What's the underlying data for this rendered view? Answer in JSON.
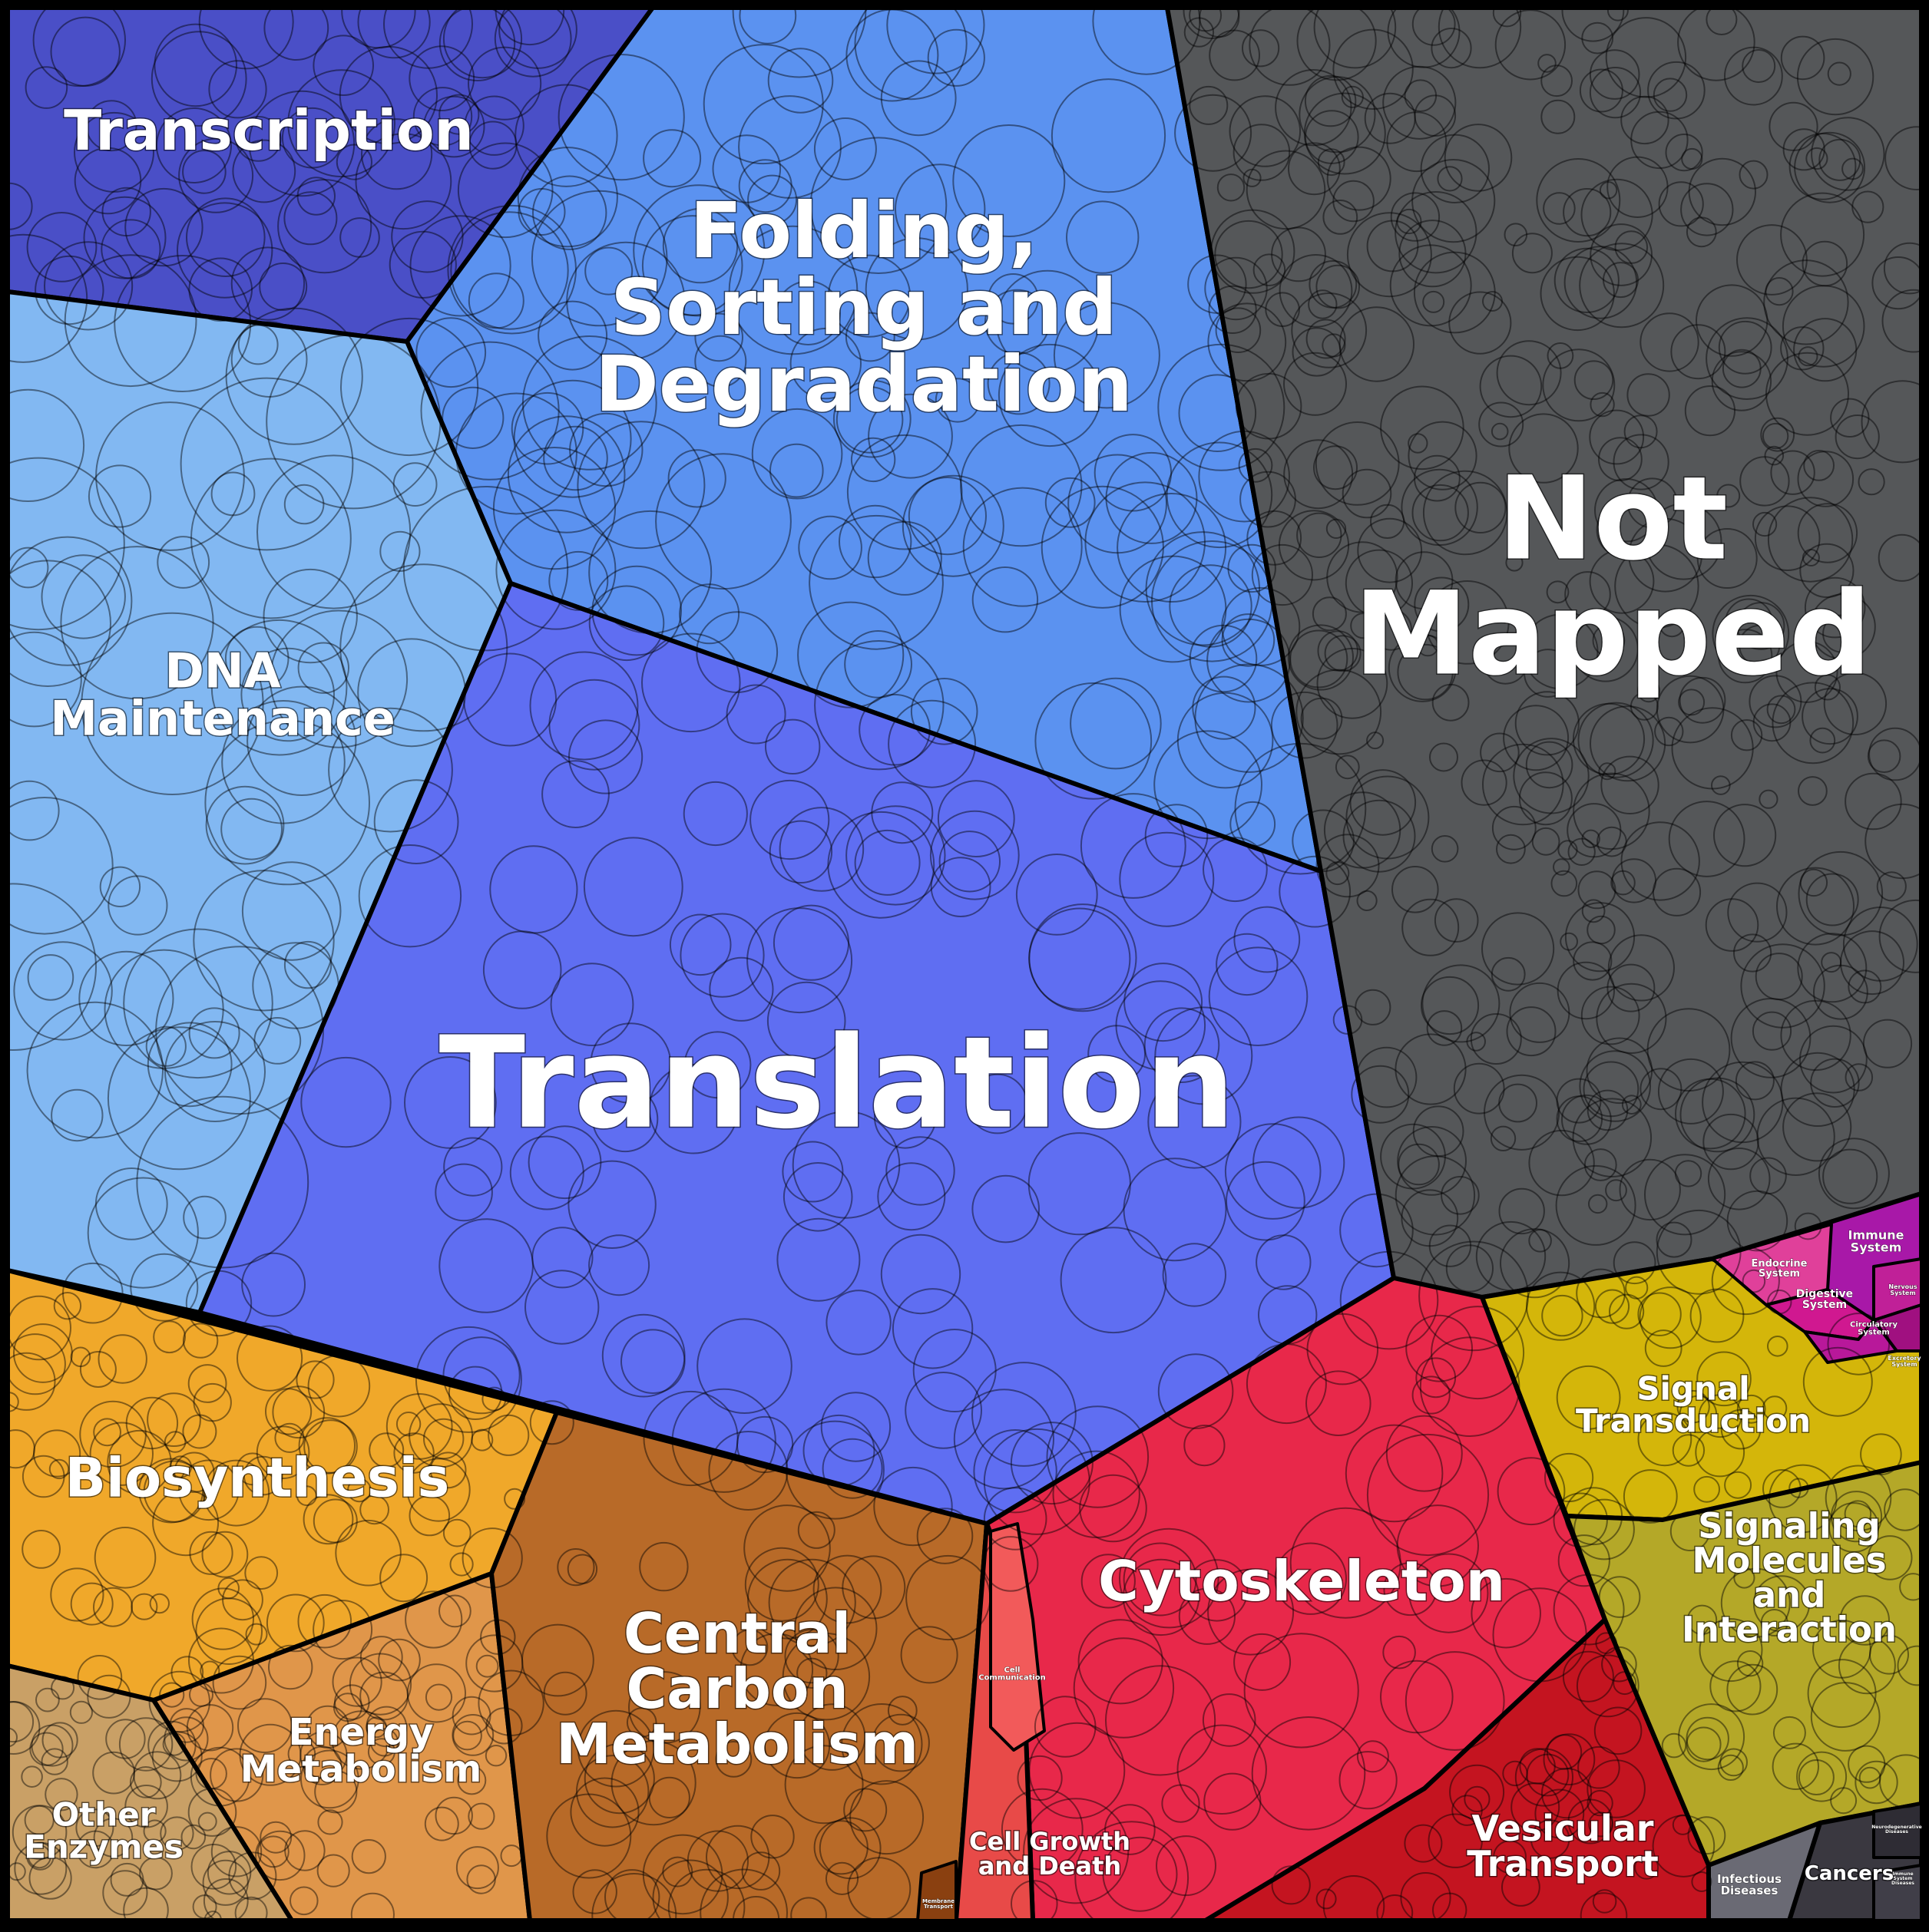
{
  "regions": [
    {
      "id": "transcription",
      "label_lines": [
        "Transcription"
      ],
      "color": "#4a4fc7"
    },
    {
      "id": "folding",
      "label_lines": [
        "Folding,",
        "Sorting and",
        "Degradation"
      ],
      "color": "#5b92f0"
    },
    {
      "id": "dna",
      "label_lines": [
        "DNA",
        "Maintenance"
      ],
      "color": "#82b8f2"
    },
    {
      "id": "translation",
      "label_lines": [
        "Translation"
      ],
      "color": "#5f6ef2"
    },
    {
      "id": "not-mapped",
      "label_lines": [
        "Not",
        "Mapped"
      ],
      "color": "#555759"
    },
    {
      "id": "biosynthesis",
      "label_lines": [
        "Biosynthesis"
      ],
      "color": "#f0a82a"
    },
    {
      "id": "energy",
      "label_lines": [
        "Energy",
        "Metabolism"
      ],
      "color": "#e0964a"
    },
    {
      "id": "other-enzymes",
      "label_lines": [
        "Other",
        "Enzymes"
      ],
      "color": "#c9a066"
    },
    {
      "id": "central-carbon",
      "label_lines": [
        "Central",
        "Carbon",
        "Metabolism"
      ],
      "color": "#b86a28"
    },
    {
      "id": "cytoskeleton",
      "label_lines": [
        "Cytoskeleton"
      ],
      "color": "#e8284a"
    },
    {
      "id": "cell-growth",
      "label_lines": [
        "Cell Growth",
        "and Death"
      ],
      "color": "#e84a48"
    },
    {
      "id": "vesicular",
      "label_lines": [
        "Vesicular",
        "Transport"
      ],
      "color": "#c41420"
    },
    {
      "id": "signal-transduction",
      "label_lines": [
        "Signal",
        "Transduction"
      ],
      "color": "#d4b60a"
    },
    {
      "id": "signaling-molecules",
      "label_lines": [
        "Signaling",
        "Molecules",
        "and",
        "Interaction"
      ],
      "color": "#b4a828"
    },
    {
      "id": "cancers",
      "label_lines": [
        "Cancers"
      ],
      "color": "#3a3840"
    },
    {
      "id": "infectious",
      "label_lines": [
        "Infectious",
        "Diseases"
      ],
      "color": "#6a6a74"
    },
    {
      "id": "endocrine",
      "label_lines": [
        "Endocrine",
        "System"
      ],
      "color": "#e0409a"
    },
    {
      "id": "immune",
      "label_lines": [
        "Immune",
        "System"
      ],
      "color": "#a818a8"
    },
    {
      "id": "digestive",
      "label_lines": [
        "Digestive",
        "System"
      ],
      "color": "#d01890"
    },
    {
      "id": "circulatory",
      "label_lines": [
        "Circulatory",
        "System"
      ],
      "color": "#b8189a"
    },
    {
      "id": "excretory",
      "label_lines": [
        "Excretory",
        "System"
      ],
      "color": "#a01080"
    },
    {
      "id": "nervous",
      "label_lines": [
        "Nervous",
        "System"
      ],
      "color": "#c02098"
    },
    {
      "id": "cell-communication",
      "label_lines": [
        "Cell",
        "Communication"
      ],
      "color": "#f25a5a"
    },
    {
      "id": "membrane-transport",
      "label_lines": [
        "Membrane",
        "Transport"
      ],
      "color": "#8a4010"
    },
    {
      "id": "neurodegenerative",
      "label_lines": [
        "Neurodegenerative",
        "Diseases"
      ],
      "color": "#2e2c34"
    },
    {
      "id": "immune-diseases",
      "label_lines": [
        "Immune",
        "System",
        "Diseases"
      ],
      "color": "#403e48"
    }
  ]
}
